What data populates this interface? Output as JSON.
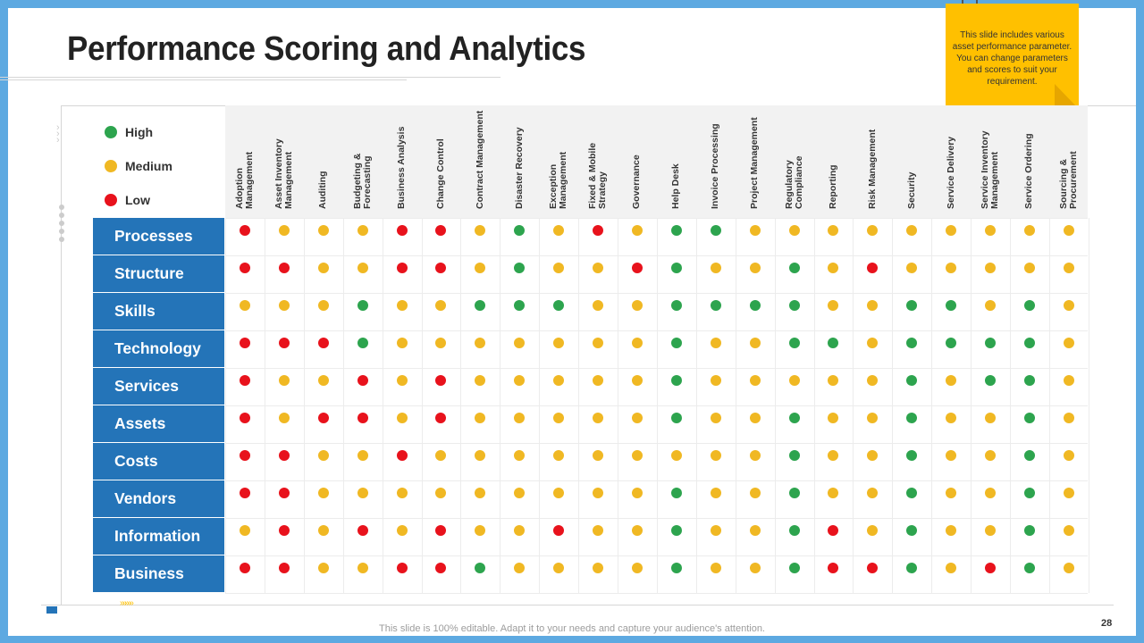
{
  "title": "Performance Scoring and Analytics",
  "note": "This slide includes various asset performance parameter. You can change parameters and scores to suit your requirement.",
  "footer": "This slide is 100% editable. Adapt it to your needs and capture your audience's attention.",
  "page_number": "28",
  "colors": {
    "High": "#2DA44E",
    "Medium": "#F0B823",
    "Low": "#E8121C",
    "row_bg": "#2474B8"
  },
  "legend": [
    {
      "key": "High",
      "label": "High"
    },
    {
      "key": "Medium",
      "label": "Medium"
    },
    {
      "key": "Low",
      "label": "Low"
    }
  ],
  "columns": [
    "Adoption\nManagement",
    "Asset Inventory\nManagement",
    "Auditing",
    "Budgeting &\nForecasting",
    "Business Analysis",
    "Change Control",
    "Contract Management",
    "Disaster Recovery",
    "Exception\nManagement",
    "Fixed & Mobile\nStrategy",
    "Governance",
    "Help Desk",
    "Invoice Processing",
    "Project Management",
    "Regulatory\nCompliance",
    "Reporting",
    "Risk Management",
    "Security",
    "Service Delivery",
    "Service Inventory\nManagement",
    "Service Ordering",
    "Sourcing &\nProcurement"
  ],
  "rows": [
    {
      "label": "Processes",
      "scores": "LMMMLLMHMLMHHMMMMMMMMM"
    },
    {
      "label": "Structure",
      "scores": "LLMMLLMHMMLHMMHMLMMMMM"
    },
    {
      "label": "Skills",
      "scores": "MMMHMMHHHMMHHHHMMHHMHM"
    },
    {
      "label": "Technology",
      "scores": "LLLHMMMMMMMHMMHHMHHHHM"
    },
    {
      "label": "Services",
      "scores": "LMMLMLMMMMMHMMMMMHMHHM"
    },
    {
      "label": "Assets",
      "scores": "LMLLMLMMMMMHMMHMMHMMHM"
    },
    {
      "label": "Costs",
      "scores": "LLMMLMMMMMMMMMHMMHMMHM"
    },
    {
      "label": "Vendors",
      "scores": "LLMMMMMMMMMHMMHMMHMMHM"
    },
    {
      "label": "Information",
      "scores": "MLMLMLMMLMMHMMHLMHMMHM"
    },
    {
      "label": "Business",
      "scores": "LLMMLLHMMMMHMMHLLHMLHM"
    }
  ]
}
